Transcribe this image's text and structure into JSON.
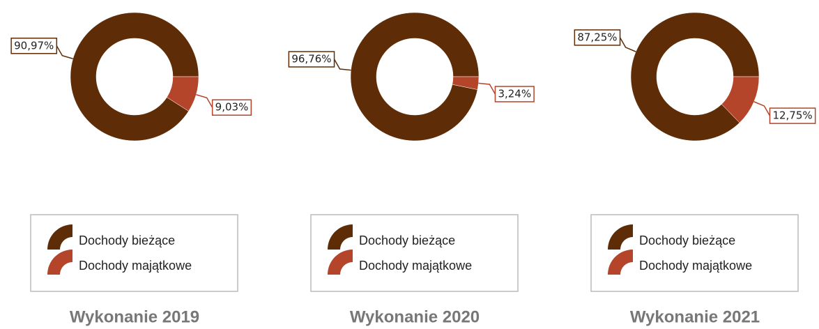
{
  "chart_data": [
    {
      "type": "pie",
      "title": "Wykonanie 2019",
      "categories": [
        "Dochody bieżące",
        "Dochody majątkowe"
      ],
      "values": [
        90.97,
        9.03
      ],
      "value_labels": [
        "90,97%",
        "9,03%"
      ],
      "colors": [
        "#5e2c06",
        "#b4442a"
      ],
      "donut": true,
      "legend": "bottom"
    },
    {
      "type": "pie",
      "title": "Wykonanie 2020",
      "categories": [
        "Dochody bieżące",
        "Dochody majątkowe"
      ],
      "values": [
        96.76,
        3.24
      ],
      "value_labels": [
        "96,76%",
        "3,24%"
      ],
      "colors": [
        "#5e2c06",
        "#b4442a"
      ],
      "donut": true,
      "legend": "bottom"
    },
    {
      "type": "pie",
      "title": "Wykonanie 2021",
      "categories": [
        "Dochody bieżące",
        "Dochody majątkowe"
      ],
      "values": [
        87.25,
        12.75
      ],
      "value_labels": [
        "87,25%",
        "12,75%"
      ],
      "colors": [
        "#5e2c06",
        "#b4442a"
      ],
      "donut": true,
      "legend": "bottom"
    }
  ]
}
